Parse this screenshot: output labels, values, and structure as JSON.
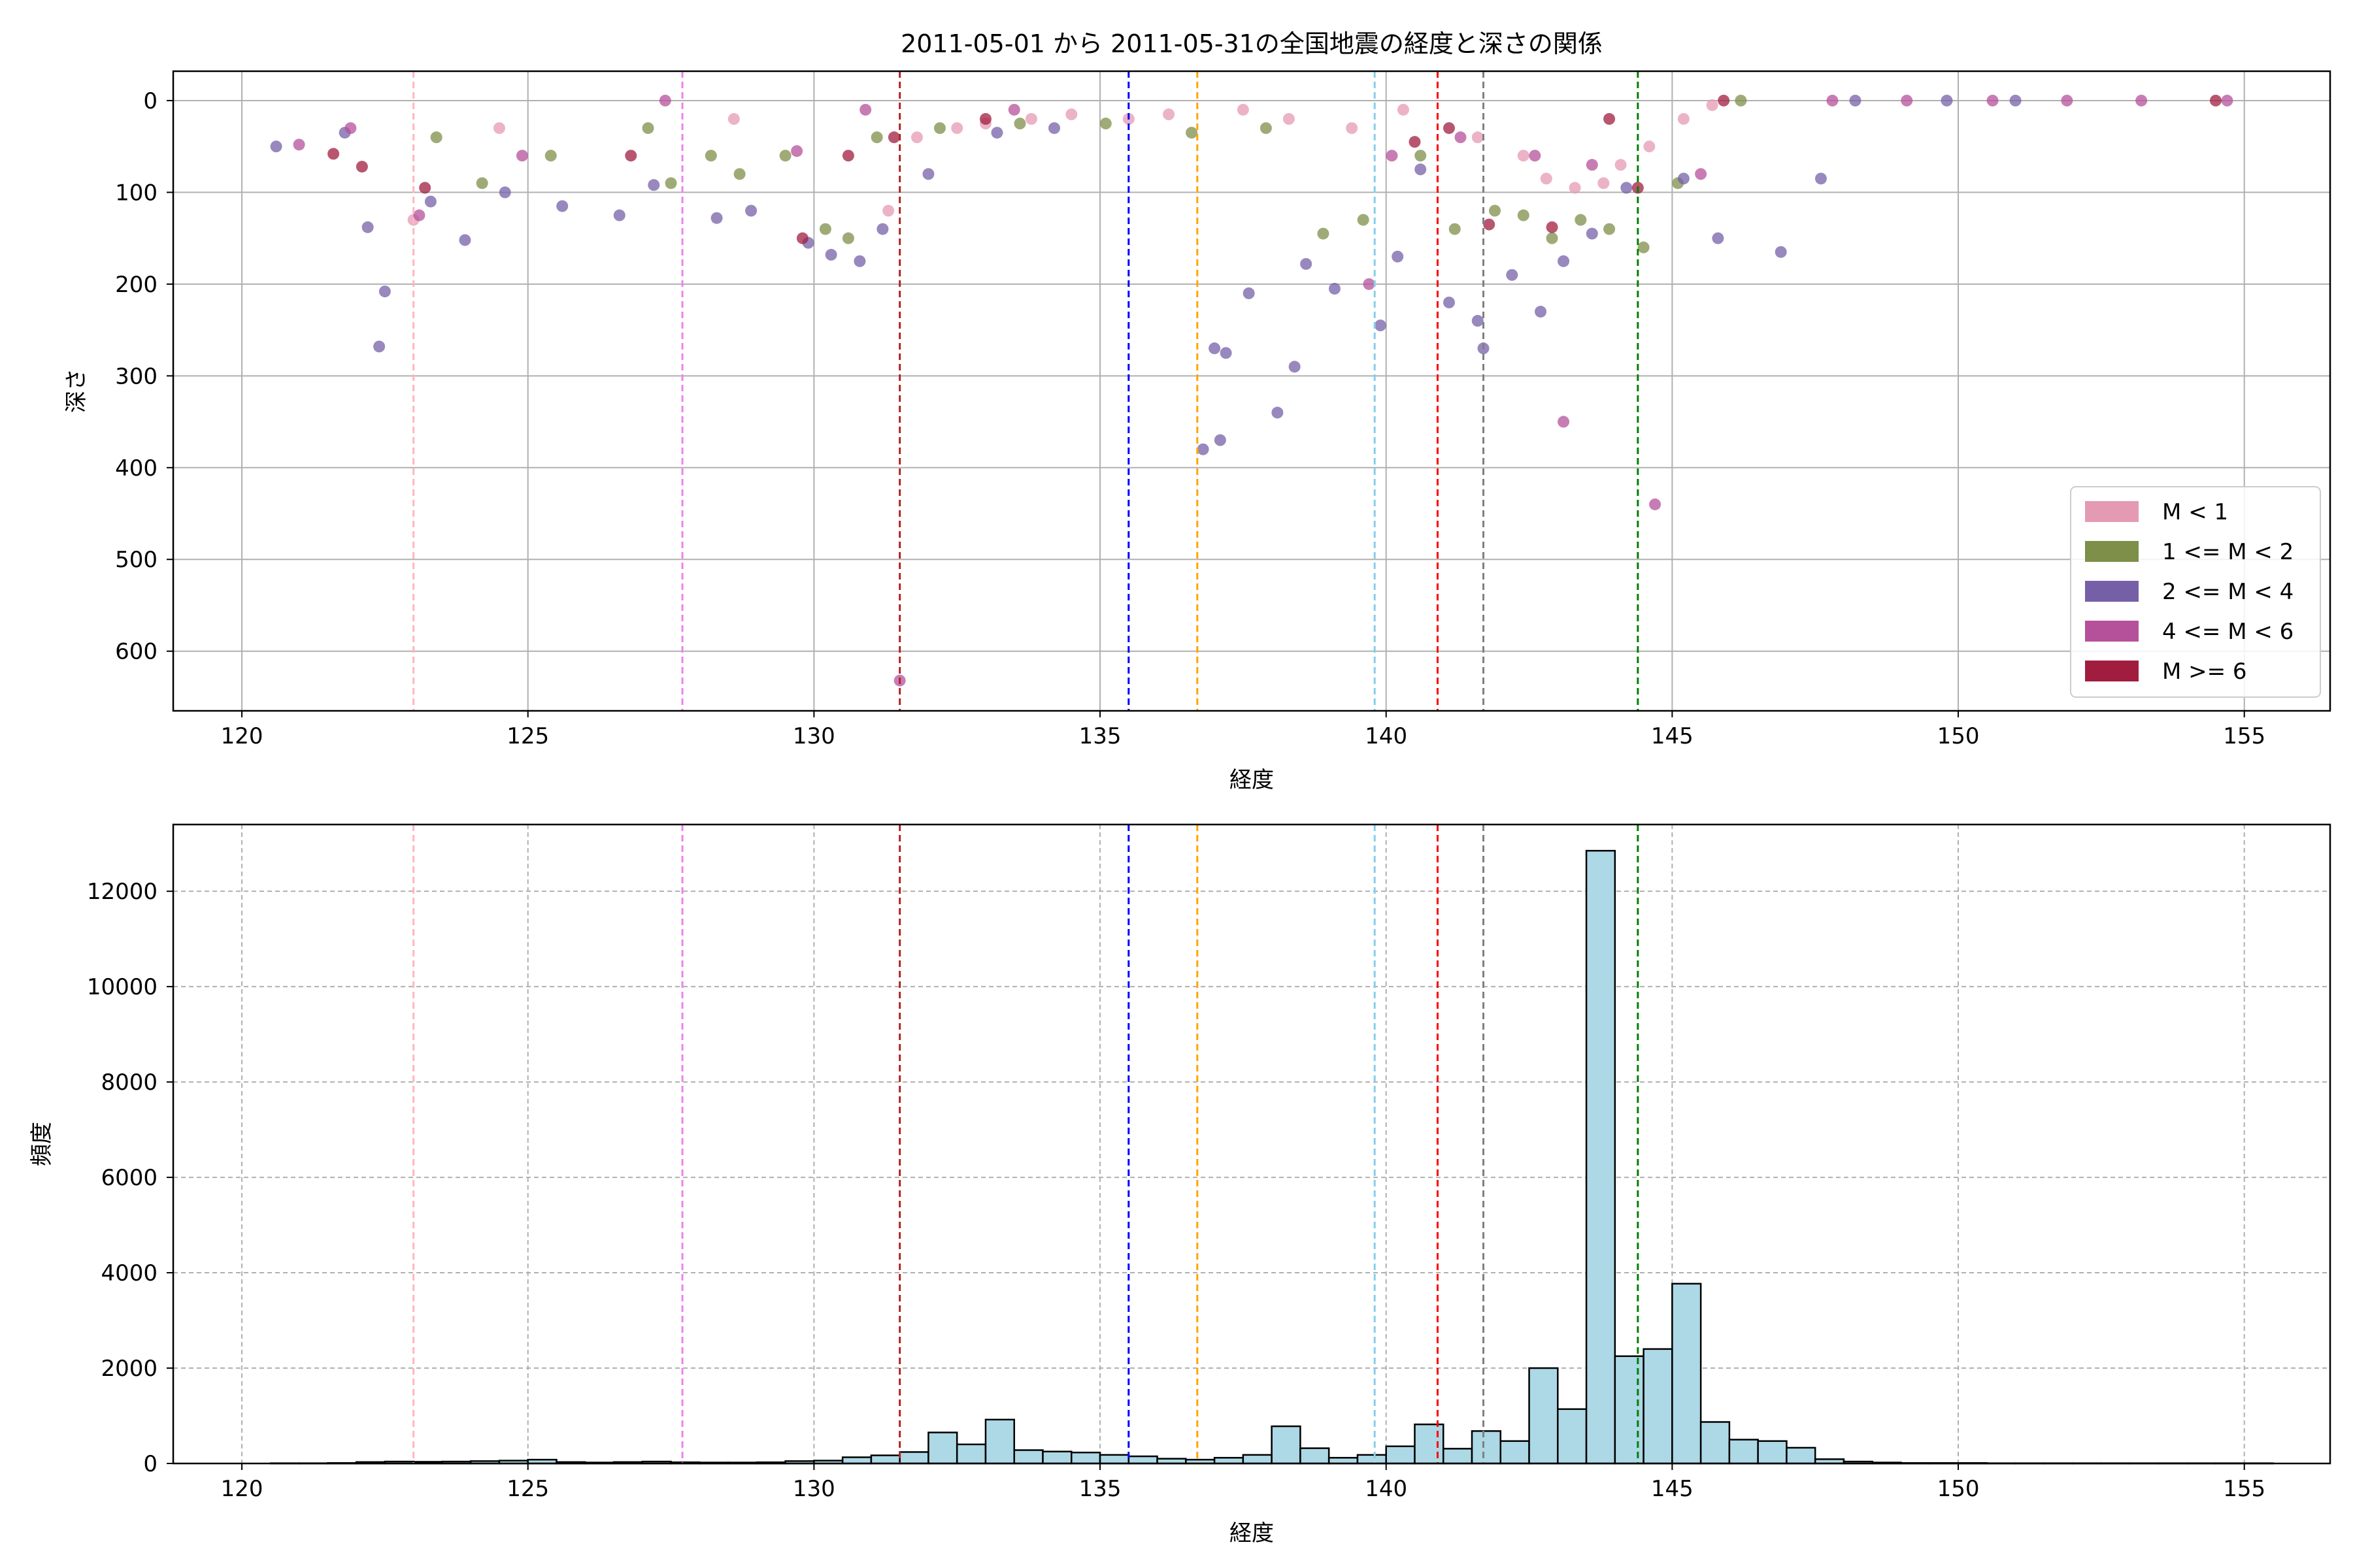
{
  "figure_title": "2011-05-01 から 2011-05-31の全国地震の経度と深さの関係",
  "colors": {
    "m_lt_1": "#e59ab3",
    "m_1_2": "#7d8f48",
    "m_2_4": "#7560a8",
    "m_4_6": "#b5509b",
    "m_ge_6": "#a11d3f",
    "hist_fill": "#add8e6",
    "grid": "#b0b0b0"
  },
  "reference_lines": [
    {
      "x": 123.0,
      "color": "#ffb6c1"
    },
    {
      "x": 127.7,
      "color": "#ee82ee"
    },
    {
      "x": 131.5,
      "color": "#b22222"
    },
    {
      "x": 135.5,
      "color": "#0000ff"
    },
    {
      "x": 136.7,
      "color": "#ffa500"
    },
    {
      "x": 139.8,
      "color": "#87ceeb"
    },
    {
      "x": 140.9,
      "color": "#ff0000"
    },
    {
      "x": 141.7,
      "color": "#808080"
    },
    {
      "x": 144.4,
      "color": "#008000"
    }
  ],
  "chart_data": [
    {
      "type": "scatter",
      "title": "2011-05-01 から 2011-05-31の全国地震の経度と深さの関係",
      "xlabel": "経度",
      "ylabel": "深さ",
      "xlim": [
        118.8,
        156.5
      ],
      "ylim": [
        665,
        -32
      ],
      "y_inverted": true,
      "xticks": [
        120,
        125,
        130,
        135,
        140,
        145,
        150,
        155
      ],
      "yticks": [
        0,
        100,
        200,
        300,
        400,
        500,
        600
      ],
      "grid": true,
      "legend": {
        "placement": "lower-right",
        "entries": [
          "M < 1",
          "1 <= M < 2",
          "2 <= M < 4",
          "4 <= M < 6",
          "M >= 6"
        ]
      },
      "series": [
        {
          "name": "M < 1",
          "color": "#e59ab3",
          "points": [
            [
              123.0,
              130
            ],
            [
              124.5,
              30
            ],
            [
              128.6,
              20
            ],
            [
              131.3,
              120
            ],
            [
              131.8,
              40
            ],
            [
              132.5,
              30
            ],
            [
              133.0,
              25
            ],
            [
              133.8,
              20
            ],
            [
              134.5,
              15
            ],
            [
              135.5,
              20
            ],
            [
              136.2,
              15
            ],
            [
              137.5,
              10
            ],
            [
              138.3,
              20
            ],
            [
              139.4,
              30
            ],
            [
              140.3,
              10
            ],
            [
              141.6,
              40
            ],
            [
              142.4,
              60
            ],
            [
              142.8,
              85
            ],
            [
              143.3,
              95
            ],
            [
              143.8,
              90
            ],
            [
              144.1,
              70
            ],
            [
              144.6,
              50
            ],
            [
              145.2,
              20
            ],
            [
              145.7,
              5
            ]
          ]
        },
        {
          "name": "1 <= M < 2",
          "color": "#7d8f48",
          "points": [
            [
              123.4,
              40
            ],
            [
              124.2,
              90
            ],
            [
              125.4,
              60
            ],
            [
              127.1,
              30
            ],
            [
              127.5,
              90
            ],
            [
              128.2,
              60
            ],
            [
              128.7,
              80
            ],
            [
              129.5,
              60
            ],
            [
              130.2,
              140
            ],
            [
              130.6,
              150
            ],
            [
              131.1,
              40
            ],
            [
              132.2,
              30
            ],
            [
              133.6,
              25
            ],
            [
              135.1,
              25
            ],
            [
              136.6,
              35
            ],
            [
              137.9,
              30
            ],
            [
              138.9,
              145
            ],
            [
              139.6,
              130
            ],
            [
              140.6,
              60
            ],
            [
              141.2,
              140
            ],
            [
              141.9,
              120
            ],
            [
              142.4,
              125
            ],
            [
              142.9,
              150
            ],
            [
              143.4,
              130
            ],
            [
              143.9,
              140
            ],
            [
              144.5,
              160
            ],
            [
              145.1,
              90
            ],
            [
              146.2,
              0
            ]
          ]
        },
        {
          "name": "2 <= M < 4",
          "color": "#7560a8",
          "points": [
            [
              120.6,
              50
            ],
            [
              121.8,
              35
            ],
            [
              122.2,
              138
            ],
            [
              122.5,
              208
            ],
            [
              122.4,
              268
            ],
            [
              123.3,
              110
            ],
            [
              123.9,
              152
            ],
            [
              124.6,
              100
            ],
            [
              125.6,
              115
            ],
            [
              126.6,
              125
            ],
            [
              127.2,
              92
            ],
            [
              128.3,
              128
            ],
            [
              128.9,
              120
            ],
            [
              129.9,
              155
            ],
            [
              130.3,
              168
            ],
            [
              130.8,
              175
            ],
            [
              131.2,
              140
            ],
            [
              132.0,
              80
            ],
            [
              133.2,
              35
            ],
            [
              134.2,
              30
            ],
            [
              136.8,
              380
            ],
            [
              137.0,
              270
            ],
            [
              137.1,
              370
            ],
            [
              137.2,
              275
            ],
            [
              137.6,
              210
            ],
            [
              138.1,
              340
            ],
            [
              138.4,
              290
            ],
            [
              138.6,
              178
            ],
            [
              139.1,
              205
            ],
            [
              139.9,
              245
            ],
            [
              140.2,
              170
            ],
            [
              140.6,
              75
            ],
            [
              141.1,
              220
            ],
            [
              141.6,
              240
            ],
            [
              141.7,
              270
            ],
            [
              142.2,
              190
            ],
            [
              142.7,
              230
            ],
            [
              143.1,
              175
            ],
            [
              143.6,
              145
            ],
            [
              144.2,
              95
            ],
            [
              145.2,
              85
            ],
            [
              145.8,
              150
            ],
            [
              146.9,
              165
            ],
            [
              147.6,
              85
            ],
            [
              148.2,
              0
            ],
            [
              149.8,
              0
            ],
            [
              151.0,
              0
            ]
          ]
        },
        {
          "name": "4 <= M < 6",
          "color": "#b5509b",
          "points": [
            [
              121.0,
              48
            ],
            [
              121.9,
              30
            ],
            [
              123.1,
              125
            ],
            [
              124.9,
              60
            ],
            [
              127.4,
              0
            ],
            [
              129.7,
              55
            ],
            [
              130.9,
              10
            ],
            [
              131.5,
              632
            ],
            [
              133.5,
              10
            ],
            [
              139.7,
              200
            ],
            [
              140.1,
              60
            ],
            [
              141.3,
              40
            ],
            [
              142.6,
              60
            ],
            [
              143.1,
              350
            ],
            [
              143.6,
              70
            ],
            [
              144.7,
              440
            ],
            [
              145.5,
              80
            ],
            [
              147.8,
              0
            ],
            [
              149.1,
              0
            ],
            [
              150.6,
              0
            ],
            [
              151.9,
              0
            ],
            [
              153.2,
              0
            ],
            [
              154.7,
              0
            ]
          ]
        },
        {
          "name": "M >= 6",
          "color": "#a11d3f",
          "points": [
            [
              121.6,
              58
            ],
            [
              122.1,
              72
            ],
            [
              123.2,
              95
            ],
            [
              126.8,
              60
            ],
            [
              129.8,
              150
            ],
            [
              130.6,
              60
            ],
            [
              131.4,
              40
            ],
            [
              133.0,
              20
            ],
            [
              140.5,
              45
            ],
            [
              141.1,
              30
            ],
            [
              141.8,
              135
            ],
            [
              142.9,
              138
            ],
            [
              143.9,
              20
            ],
            [
              144.4,
              95
            ],
            [
              145.9,
              0
            ],
            [
              154.5,
              0
            ]
          ]
        }
      ]
    },
    {
      "type": "bar",
      "subtype": "histogram",
      "xlabel": "経度",
      "ylabel": "頻度",
      "xlim": [
        118.8,
        156.5
      ],
      "ylim": [
        0,
        13400
      ],
      "xticks": [
        120,
        125,
        130,
        135,
        140,
        145,
        150,
        155
      ],
      "yticks": [
        0,
        2000,
        4000,
        6000,
        8000,
        10000,
        12000
      ],
      "grid": true,
      "bin_start": 120.5,
      "bin_width": 0.5,
      "values": [
        5,
        5,
        10,
        30,
        40,
        35,
        40,
        50,
        60,
        80,
        30,
        20,
        30,
        40,
        25,
        20,
        20,
        25,
        50,
        60,
        130,
        170,
        240,
        650,
        400,
        920,
        280,
        250,
        230,
        180,
        150,
        100,
        80,
        120,
        180,
        780,
        320,
        120,
        180,
        360,
        820,
        310,
        680,
        470,
        2000,
        1140,
        12850,
        2250,
        2400,
        3770,
        870,
        500,
        470,
        330,
        90,
        40,
        20,
        10,
        10,
        10,
        5,
        5,
        5,
        5,
        5,
        5,
        5,
        5,
        5,
        5
      ]
    }
  ]
}
